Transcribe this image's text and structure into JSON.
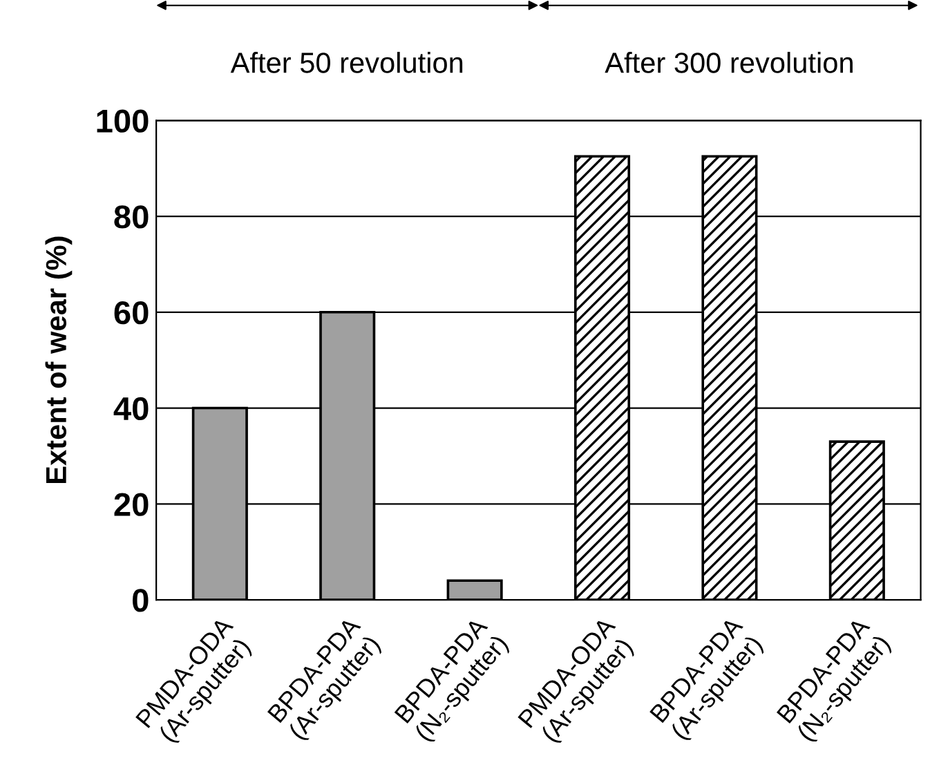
{
  "chart_data": {
    "type": "bar",
    "categories": [
      "PMDA-ODA\n(Ar-sputter)",
      "BPDA-PDA\n(Ar-sputter)",
      "BPDA-PDA\n(N₂-sputter)",
      "PMDA-ODA\n(Ar-sputter)",
      "BPDA-PDA\n(Ar-sputter)",
      "BPDA-PDA\n(N₂-sputter)"
    ],
    "series": [
      {
        "color": "#a0a0a0",
        "values": [
          40,
          60,
          4,
          null,
          null,
          null
        ]
      },
      {
        "color": "#000000",
        "values": [
          null,
          null,
          null,
          92.5,
          92.5,
          33
        ]
      }
    ],
    "ylabel": "Extent of wear (%)",
    "ylim": [
      0,
      100
    ],
    "yticks": [
      0,
      20,
      40,
      60,
      80,
      100
    ],
    "grid": "y",
    "annotations": [
      "After 50 revolution",
      "After 300 revolution"
    ]
  }
}
